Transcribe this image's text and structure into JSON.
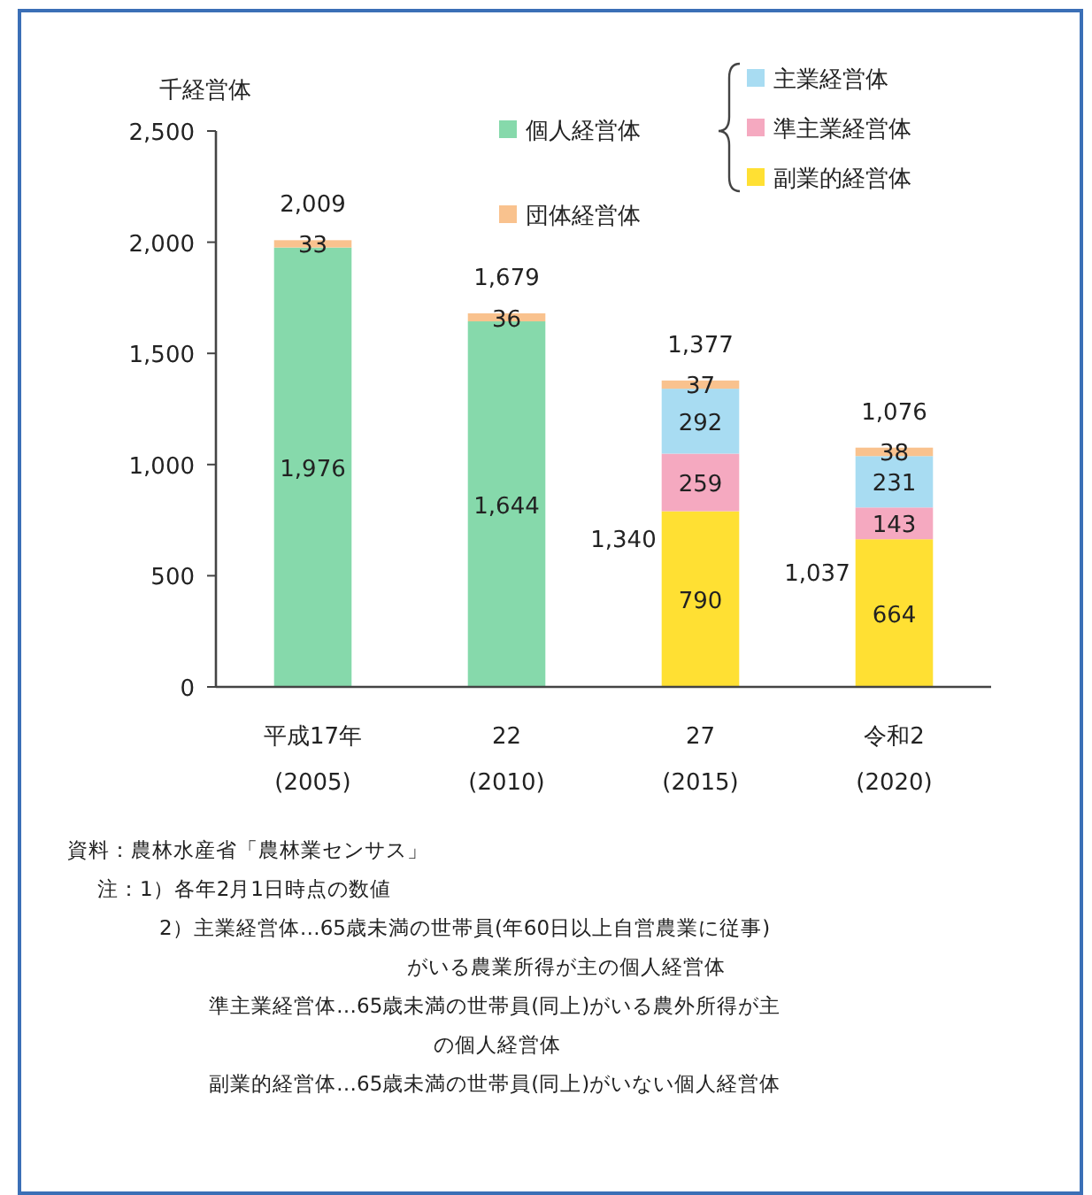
{
  "chart_data": {
    "type": "bar",
    "stacked": true,
    "ylabel": "千経営体",
    "categories": [
      "平成17年\n(2005)",
      "22\n(2010)",
      "27\n(2015)",
      "令和2\n(2020)"
    ],
    "series": [
      {
        "name": "副業的経営体",
        "color": "#ffe033",
        "values": [
          null,
          null,
          790,
          664
        ],
        "value_labels": [
          null,
          null,
          "790",
          "664"
        ]
      },
      {
        "name": "準主業経営体",
        "color": "#f5a9c0",
        "values": [
          null,
          null,
          259,
          143
        ],
        "value_labels": [
          null,
          null,
          "259",
          "143"
        ]
      },
      {
        "name": "主業経営体",
        "color": "#a8dcf2",
        "values": [
          null,
          null,
          292,
          231
        ],
        "value_labels": [
          null,
          null,
          "292",
          "231"
        ]
      },
      {
        "name": "個人経営体",
        "color": "#86d9ab",
        "values": [
          1976,
          1644,
          null,
          null
        ],
        "value_labels": [
          "1,976",
          "1,644",
          null,
          null
        ]
      },
      {
        "name": "団体経営体",
        "color": "#f9c28e",
        "values": [
          33,
          36,
          37,
          38
        ],
        "value_labels": [
          "33",
          "36",
          "37",
          "38"
        ]
      }
    ],
    "totals": [
      "2,009",
      "1,679",
      "1,377",
      "1,076"
    ],
    "ylim": [
      0,
      2500
    ],
    "yticks": [
      0,
      {
        "value": 500,
        "label": "500"
      },
      {
        "value": 1000,
        "label": "1,000"
      },
      {
        "value": 1500,
        "label": "1,500"
      },
      {
        "value": 2000,
        "label": "2,000"
      },
      {
        "value": 2500,
        "label": "2,500"
      }
    ],
    "legend": "top right",
    "annotations": [
      "1,340",
      "1,037",
      "資料：農林水産省「農林業センサス」",
      "注：1）各年2月1日時点の数値",
      "2）主業経営体…65歳未満の世帯員(年60日以上自営農業に従事)",
      "がいる農業所得が主の個人経営体",
      "準主業経営体…65歳未満の世帯員(同上)がいる農外所得が主",
      "の個人経営体",
      "副業的経営体…65歳未満の世帯員(同上)がいない個人経営体"
    ]
  }
}
